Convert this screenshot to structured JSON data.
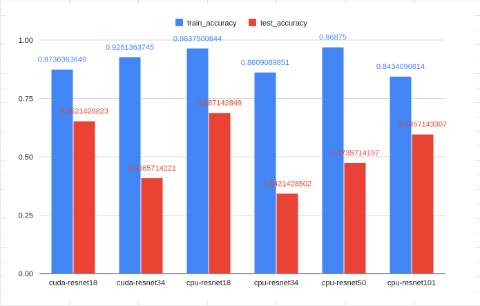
{
  "chart_data": {
    "type": "bar",
    "title": "",
    "xlabel": "",
    "ylabel": "",
    "categories": [
      "cuda-resnet18",
      "cuda-resnet34",
      "cpu-resnet18",
      "cpu-resnet34",
      "cpu-resnet50",
      "cpu-resnet101"
    ],
    "series": [
      {
        "name": "train_accuracy",
        "color": "#4285f4",
        "values": [
          0.8736363649,
          0.9261363745,
          0.9637500644,
          0.8609089851,
          0.96875,
          0.8434090614
        ],
        "labels": [
          "0.8736363649",
          "0.9261363745",
          "0.9637500644",
          "0.8609089851",
          "0.96875",
          "0.8434090614"
        ]
      },
      {
        "name": "test_accuracy",
        "color": "#ea4335",
        "values": [
          0.6521428823,
          0.4085714221,
          0.687142849,
          0.3421428502,
          0.4735714197,
          0.5957143307
        ],
        "labels": [
          "0.6521428823",
          "0.4085714221",
          "0.687142849",
          "0.3421428502",
          "0.4735714197",
          "0.5957143307"
        ]
      }
    ],
    "ylim": [
      0,
      1
    ],
    "yticks": [
      "0.00",
      "0.25",
      "0.50",
      "0.75",
      "1.00"
    ],
    "grid": true,
    "legend": "top-center"
  }
}
